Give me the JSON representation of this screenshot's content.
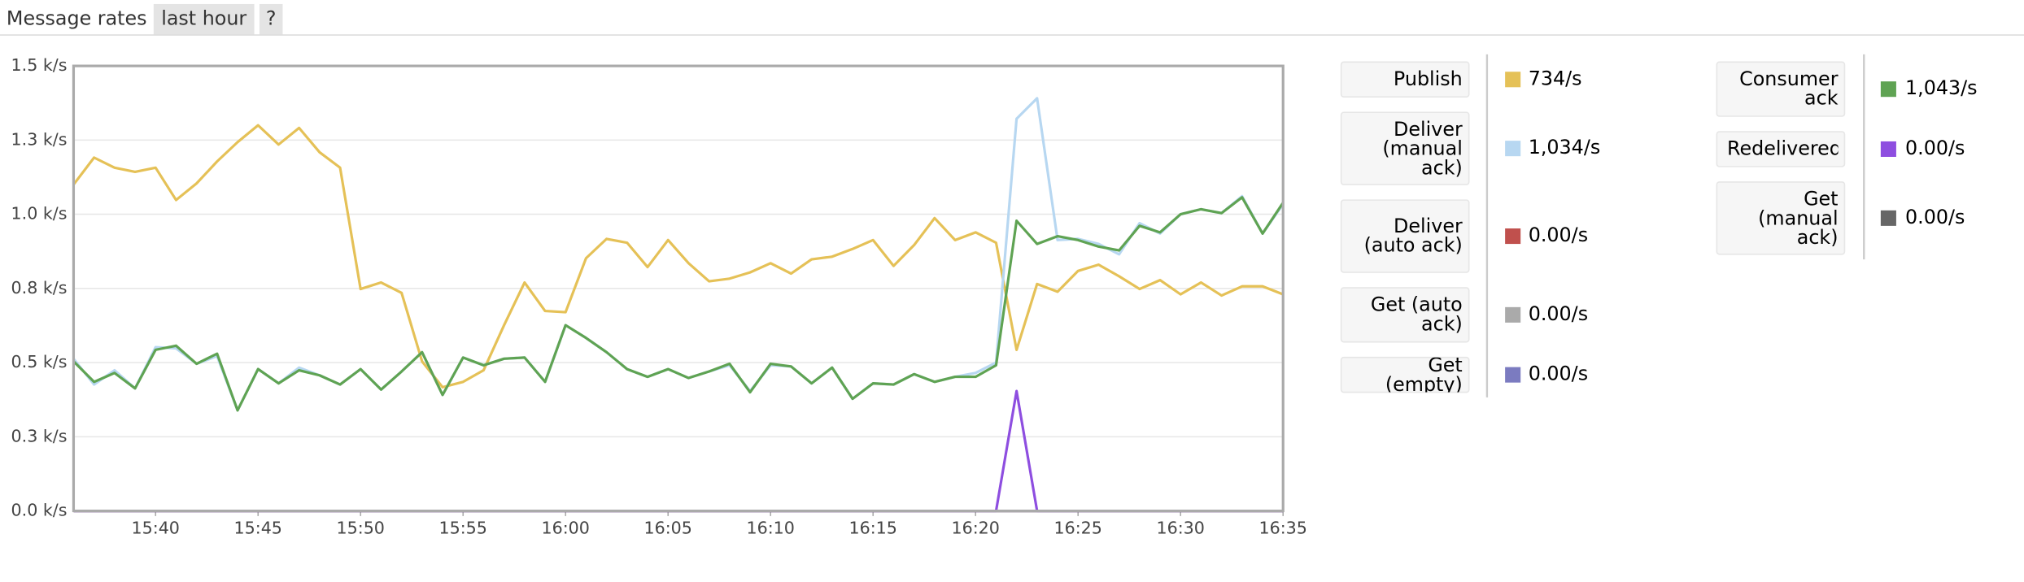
{
  "header": {
    "title": "Message rates",
    "range": "last hour",
    "help": "?"
  },
  "chart_data": {
    "type": "line",
    "x": [
      "15:36",
      "15:37",
      "15:38",
      "15:39",
      "15:40",
      "15:41",
      "15:42",
      "15:43",
      "15:44",
      "15:45",
      "15:46",
      "15:47",
      "15:48",
      "15:49",
      "15:50",
      "15:51",
      "15:52",
      "15:53",
      "15:54",
      "15:55",
      "15:56",
      "15:57",
      "15:58",
      "15:59",
      "16:00",
      "16:01",
      "16:02",
      "16:03",
      "16:04",
      "16:05",
      "16:06",
      "16:07",
      "16:08",
      "16:09",
      "16:10",
      "16:11",
      "16:12",
      "16:13",
      "16:14",
      "16:15",
      "16:16",
      "16:17",
      "16:18",
      "16:19",
      "16:20",
      "16:21",
      "16:22",
      "16:23",
      "16:24",
      "16:25",
      "16:26",
      "16:27",
      "16:28",
      "16:29",
      "16:30",
      "16:31",
      "16:32",
      "16:33",
      "16:34",
      "16:35"
    ],
    "xlim": [
      "15:36",
      "16:35"
    ],
    "xticks": [
      "15:40",
      "15:45",
      "15:50",
      "15:55",
      "16:00",
      "16:05",
      "16:10",
      "16:15",
      "16:20",
      "16:25",
      "16:30",
      "16:35"
    ],
    "ylim": [
      0,
      1500
    ],
    "yticks": [
      {
        "value": 0,
        "label": "0.0 k/s"
      },
      {
        "value": 250,
        "label": "0.3 k/s"
      },
      {
        "value": 500,
        "label": "0.5 k/s"
      },
      {
        "value": 750,
        "label": "0.8 k/s"
      },
      {
        "value": 1000,
        "label": "1.0 k/s"
      },
      {
        "value": 1250,
        "label": "1.3 k/s"
      },
      {
        "value": 1500,
        "label": "1.5 k/s"
      }
    ],
    "grid": true,
    "series": [
      {
        "name": "Publish",
        "color": "#e5c157",
        "rate": "734/s",
        "values": [
          1100,
          1191,
          1157,
          1143,
          1157,
          1048,
          1104,
          1178,
          1243,
          1300,
          1235,
          1291,
          1209,
          1157,
          748,
          770,
          735,
          504,
          417,
          435,
          474,
          626,
          770,
          674,
          670,
          852,
          917,
          904,
          822,
          913,
          835,
          774,
          783,
          804,
          835,
          800,
          848,
          857,
          883,
          913,
          826,
          896,
          987,
          913,
          939,
          904,
          543,
          765,
          739,
          809,
          830,
          791,
          748,
          778,
          730,
          770,
          726,
          757,
          757,
          730
        ]
      },
      {
        "name": "Deliver (manual ack)",
        "color": "#b7d7f1",
        "rate": "1,034/s",
        "values": [
          513,
          426,
          474,
          413,
          552,
          548,
          496,
          522,
          339,
          478,
          430,
          483,
          457,
          426,
          478,
          409,
          470,
          535,
          391,
          517,
          491,
          513,
          517,
          435,
          626,
          583,
          535,
          478,
          452,
          478,
          448,
          470,
          491,
          404,
          491,
          487,
          430,
          483,
          378,
          430,
          426,
          461,
          435,
          452,
          465,
          500,
          1322,
          1391,
          913,
          917,
          900,
          865,
          970,
          935,
          1000,
          1017,
          1004,
          1061,
          935,
          1034
        ]
      },
      {
        "name": "Deliver (auto ack)",
        "color": "#c0504d",
        "rate": "0.00/s",
        "values": [
          0,
          0,
          0,
          0,
          0,
          0,
          0,
          0,
          0,
          0,
          0,
          0,
          0,
          0,
          0,
          0,
          0,
          0,
          0,
          0,
          0,
          0,
          0,
          0,
          0,
          0,
          0,
          0,
          0,
          0,
          0,
          0,
          0,
          0,
          0,
          0,
          0,
          0,
          0,
          0,
          0,
          0,
          0,
          0,
          0,
          0,
          0,
          0,
          0,
          0,
          0,
          0,
          0,
          0,
          0,
          0,
          0,
          0,
          0,
          0
        ]
      },
      {
        "name": "Get (auto ack)",
        "color": "#aaaaaa",
        "rate": "0.00/s",
        "values": [
          0,
          0,
          0,
          0,
          0,
          0,
          0,
          0,
          0,
          0,
          0,
          0,
          0,
          0,
          0,
          0,
          0,
          0,
          0,
          0,
          0,
          0,
          0,
          0,
          0,
          0,
          0,
          0,
          0,
          0,
          0,
          0,
          0,
          0,
          0,
          0,
          0,
          0,
          0,
          0,
          0,
          0,
          0,
          0,
          0,
          0,
          0,
          0,
          0,
          0,
          0,
          0,
          0,
          0,
          0,
          0,
          0,
          0,
          0,
          0
        ]
      },
      {
        "name": "Get (empty)",
        "color": "#7b7bc0",
        "rate": "0.00/s",
        "values": [
          0,
          0,
          0,
          0,
          0,
          0,
          0,
          0,
          0,
          0,
          0,
          0,
          0,
          0,
          0,
          0,
          0,
          0,
          0,
          0,
          0,
          0,
          0,
          0,
          0,
          0,
          0,
          0,
          0,
          0,
          0,
          0,
          0,
          0,
          0,
          0,
          0,
          0,
          0,
          0,
          0,
          0,
          0,
          0,
          0,
          0,
          0,
          0,
          0,
          0,
          0,
          0,
          0,
          0,
          0,
          0,
          0,
          0,
          0,
          0
        ]
      },
      {
        "name": "Consumer ack",
        "color": "#5fa353",
        "rate": "1,043/s",
        "values": [
          504,
          435,
          465,
          413,
          543,
          557,
          496,
          530,
          339,
          478,
          430,
          474,
          457,
          426,
          478,
          409,
          470,
          535,
          391,
          517,
          491,
          513,
          517,
          435,
          626,
          583,
          535,
          478,
          452,
          478,
          448,
          470,
          496,
          400,
          496,
          487,
          430,
          483,
          378,
          430,
          426,
          461,
          435,
          452,
          452,
          491,
          978,
          900,
          926,
          913,
          891,
          878,
          961,
          939,
          1000,
          1017,
          1004,
          1057,
          935,
          1039
        ]
      },
      {
        "name": "Redelivered",
        "color": "#8e4ee0",
        "rate": "0.00/s",
        "values": [
          0,
          0,
          0,
          0,
          0,
          0,
          0,
          0,
          0,
          0,
          0,
          0,
          0,
          0,
          0,
          0,
          0,
          0,
          0,
          0,
          0,
          0,
          0,
          0,
          0,
          0,
          0,
          0,
          0,
          0,
          0,
          0,
          0,
          0,
          0,
          0,
          0,
          0,
          0,
          0,
          0,
          0,
          0,
          0,
          0,
          0,
          404,
          0,
          0,
          0,
          0,
          0,
          0,
          0,
          0,
          0,
          0,
          0,
          0,
          0
        ]
      },
      {
        "name": "Get (manual ack)",
        "color": "#666666",
        "rate": "0.00/s",
        "values": [
          0,
          0,
          0,
          0,
          0,
          0,
          0,
          0,
          0,
          0,
          0,
          0,
          0,
          0,
          0,
          0,
          0,
          0,
          0,
          0,
          0,
          0,
          0,
          0,
          0,
          0,
          0,
          0,
          0,
          0,
          0,
          0,
          0,
          0,
          0,
          0,
          0,
          0,
          0,
          0,
          0,
          0,
          0,
          0,
          0,
          0,
          0,
          0,
          0,
          0,
          0,
          0,
          0,
          0,
          0,
          0,
          0,
          0,
          0,
          0
        ]
      }
    ]
  }
}
